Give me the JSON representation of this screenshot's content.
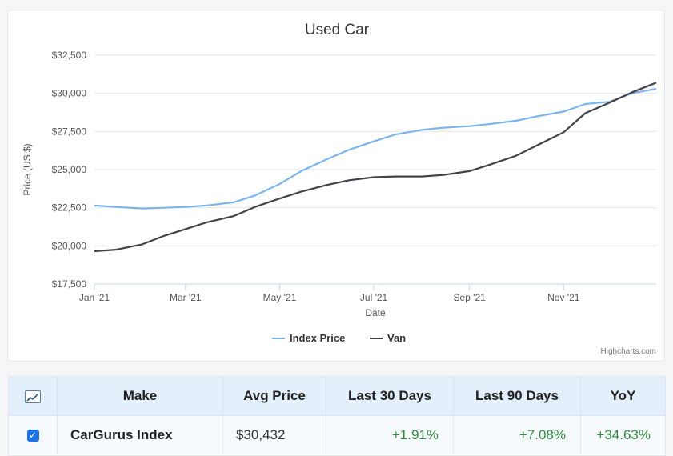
{
  "chart_data": {
    "type": "line",
    "title": "Used Car",
    "xlabel": "Date",
    "ylabel": "Price (US $)",
    "ylim": [
      17500,
      32500
    ],
    "yticks": [
      17500,
      20000,
      22500,
      25000,
      27500,
      30000,
      32500
    ],
    "ytick_labels": [
      "$17,500",
      "$20,000",
      "$22,500",
      "$25,000",
      "$27,500",
      "$30,000",
      "$32,500"
    ],
    "xlim": [
      "2021-01-01",
      "2021-12-31"
    ],
    "xtick_dates": [
      "2021-01-01",
      "2021-03-01",
      "2021-05-01",
      "2021-07-01",
      "2021-09-01",
      "2021-11-01"
    ],
    "xtick_labels": [
      "Jan '21",
      "Mar '21",
      "May '21",
      "Jul '21",
      "Sep '21",
      "Nov '21"
    ],
    "grid": true,
    "legend_position": "bottom-center",
    "series": [
      {
        "name": "Index Price",
        "color": "#7cb5ec",
        "points": [
          [
            "2021-01-01",
            22650
          ],
          [
            "2021-01-15",
            22550
          ],
          [
            "2021-02-01",
            22450
          ],
          [
            "2021-02-15",
            22500
          ],
          [
            "2021-03-01",
            22550
          ],
          [
            "2021-03-15",
            22650
          ],
          [
            "2021-04-01",
            22850
          ],
          [
            "2021-04-15",
            23300
          ],
          [
            "2021-05-01",
            24050
          ],
          [
            "2021-05-15",
            24900
          ],
          [
            "2021-06-01",
            25700
          ],
          [
            "2021-06-15",
            26300
          ],
          [
            "2021-07-01",
            26850
          ],
          [
            "2021-07-15",
            27300
          ],
          [
            "2021-08-01",
            27600
          ],
          [
            "2021-08-15",
            27750
          ],
          [
            "2021-09-01",
            27850
          ],
          [
            "2021-09-15",
            28000
          ],
          [
            "2021-10-01",
            28200
          ],
          [
            "2021-10-15",
            28500
          ],
          [
            "2021-11-01",
            28800
          ],
          [
            "2021-11-15",
            29300
          ],
          [
            "2021-12-01",
            29450
          ],
          [
            "2021-12-15",
            30000
          ],
          [
            "2021-12-31",
            30300
          ]
        ]
      },
      {
        "name": "Van",
        "color": "#434348",
        "points": [
          [
            "2021-01-01",
            19650
          ],
          [
            "2021-01-15",
            19750
          ],
          [
            "2021-02-01",
            20100
          ],
          [
            "2021-02-15",
            20650
          ],
          [
            "2021-03-01",
            21100
          ],
          [
            "2021-03-15",
            21550
          ],
          [
            "2021-04-01",
            21950
          ],
          [
            "2021-04-15",
            22550
          ],
          [
            "2021-05-01",
            23100
          ],
          [
            "2021-05-15",
            23550
          ],
          [
            "2021-06-01",
            24000
          ],
          [
            "2021-06-15",
            24300
          ],
          [
            "2021-07-01",
            24500
          ],
          [
            "2021-07-15",
            24550
          ],
          [
            "2021-08-01",
            24550
          ],
          [
            "2021-08-15",
            24650
          ],
          [
            "2021-09-01",
            24900
          ],
          [
            "2021-09-15",
            25350
          ],
          [
            "2021-10-01",
            25900
          ],
          [
            "2021-10-15",
            26600
          ],
          [
            "2021-11-01",
            27450
          ],
          [
            "2021-11-15",
            28700
          ],
          [
            "2021-12-01",
            29400
          ],
          [
            "2021-12-15",
            30050
          ],
          [
            "2021-12-31",
            30700
          ]
        ]
      }
    ]
  },
  "credits": "Highcharts.com",
  "table": {
    "headers": {
      "make": "Make",
      "avg_price": "Avg Price",
      "last_30": "Last 30 Days",
      "last_90": "Last 90 Days",
      "yoy": "YoY"
    },
    "rows": [
      {
        "make": "CarGurus Index",
        "avg_price": "$30,432",
        "last_30": "+1.91%",
        "last_90": "+7.08%",
        "yoy": "+34.63%",
        "checked": true
      }
    ],
    "positive_color": "#2e8b3a",
    "header_icon": "line-chart-icon"
  }
}
